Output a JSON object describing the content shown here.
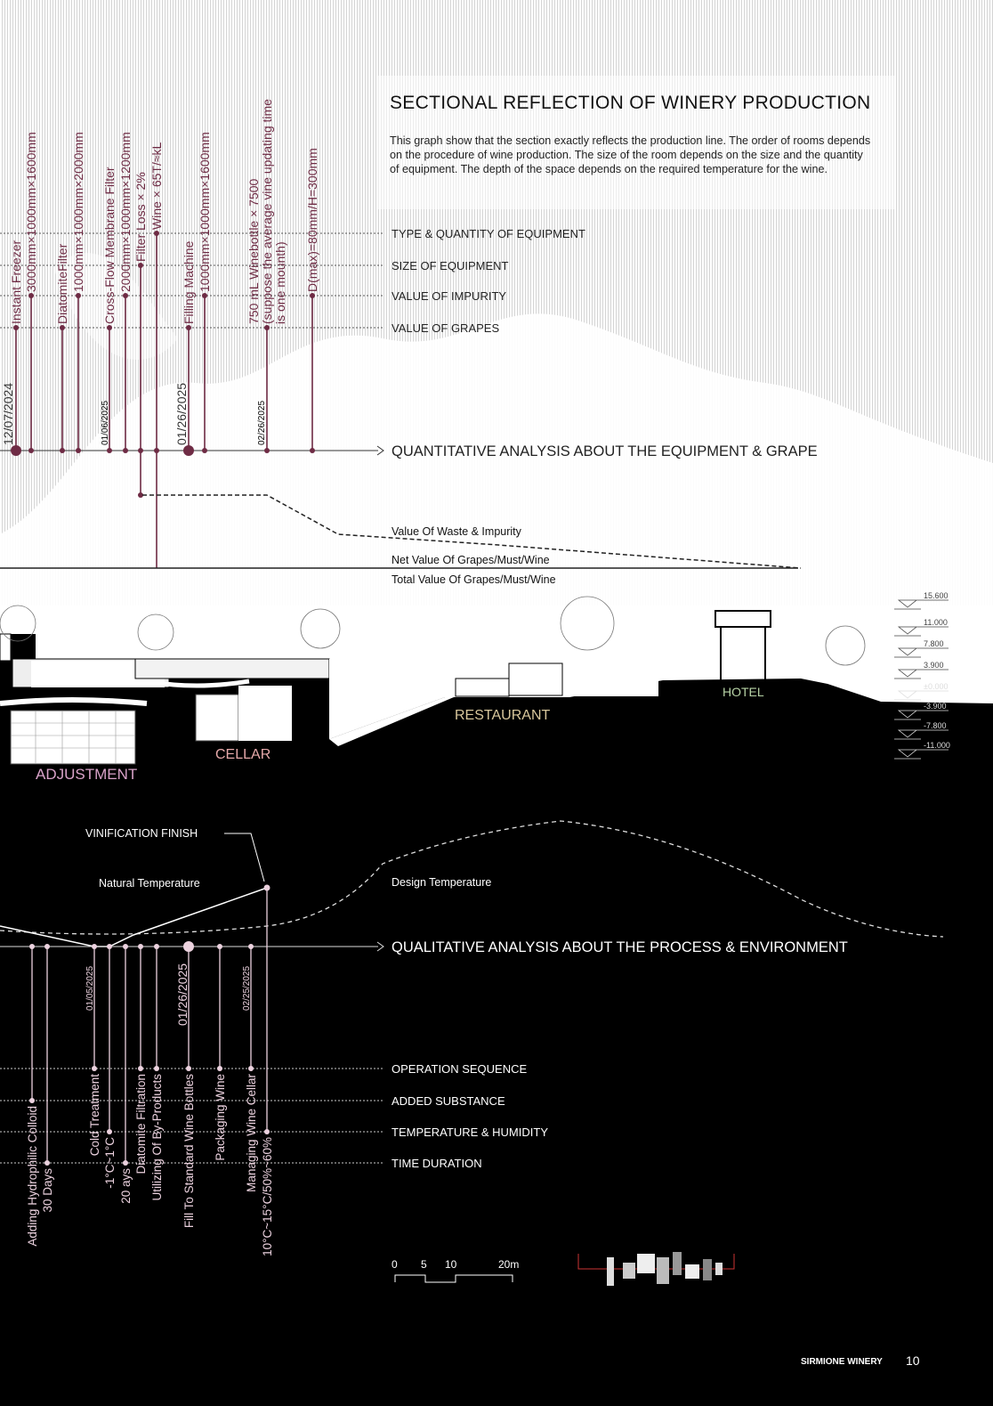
{
  "header": {
    "title": "SECTIONAL REFLECTION OF WINERY PRODUCTION",
    "description": "This graph show that the section exactly reflects the production line. The order of rooms depends on the procedure of wine production. The size of the room depends on the size and the quantity of equipment. The depth of the space depends on the required temperature for the wine."
  },
  "quantitative": {
    "axis_label": "QUANTITATIVE ANALYSIS ABOUT THE EQUIPMENT & GRAPE",
    "levels": [
      "TYPE & QUANTITY OF EQUIPMENT",
      "SIZE OF EQUIPMENT",
      "VALUE OF IMPURITY",
      "VALUE OF GRAPES"
    ],
    "stems": {
      "instant_freezer": "Instant Freezer",
      "freezer_size": "3000mm×1000mm×1600mm",
      "diatomite_filter": "DiatomiteFilter",
      "diatomite_size": "1000mm×1000mm×2000mm",
      "crossflow_filter": "Cross-Flow Membrane Filter",
      "crossflow_size": "2000mm×1000mm×1200mm",
      "filter_loss": "Filter Loss × 2%",
      "wine": "Wine × 65T/≈kL",
      "filling_machine": "Filling Machine",
      "filling_size": "1000mm×1000mm×1600mm",
      "winebottle_1": "750 mL Winebottle × 7500",
      "winebottle_2": "(suppose the average vine updating time",
      "winebottle_3": "is one mounth)",
      "dmax": "D(max)=80mm/H=300mm"
    },
    "dates": [
      "12/07/2024",
      "01/06/2025",
      "01/26/2025",
      "02/26/2025"
    ],
    "value_lines": [
      "Value Of Waste & Impurity",
      "Net Value Of Grapes/Must/Wine",
      "Total Value Of Grapes/Must/Wine"
    ]
  },
  "section": {
    "rooms": [
      "ADJUSTMENT",
      "CELLAR",
      "RESTAURANT",
      "HOTEL"
    ],
    "room_colors": [
      "#d8a2c8",
      "#e6a9aa",
      "#d8c79c",
      "#b7d3a6"
    ],
    "elevations": [
      "15.600",
      "11.000",
      "7.800",
      "3.900",
      "±0.000",
      "-3.900",
      "-7.800",
      "-11.000"
    ]
  },
  "qualitative": {
    "axis_label": "QUALITATIVE ANALYSIS ABOUT THE PROCESS & ENVIRONMENT",
    "levels": [
      "OPERATION SEQUENCE",
      "ADDED SUBSTANCE",
      "TEMPERATURE & HUMIDITY",
      "TIME DURATION"
    ],
    "annotations": {
      "vinification_finish": "VINIFICATION FINISH",
      "natural_temperature": "Natural Temperature",
      "design_temperature": "Design Temperature"
    },
    "stems": {
      "hydrophilic": "Adding Hydrophilic Colloid",
      "days30": "30 Days",
      "cold_treatment": "Cold Treatment",
      "temp_cold": "-1°C~1°C",
      "days20": "20 ays",
      "diatomite_filtration": "Diatomite Filtration",
      "byproducts": "Utilizing Of By-Products",
      "fill_bottles": "Fill To Standard Wine Bottles",
      "packaging": "Packaging Wine",
      "managing_cellar": "Managing Wine Cellar",
      "cellar_climate": "10°C~15°C/50%~60%"
    },
    "dates": [
      "01/05/2025",
      "01/26/2025",
      "02/25/2025"
    ]
  },
  "scale_bar": {
    "ticks": [
      "0",
      "5",
      "10",
      "20m"
    ]
  },
  "footer": {
    "project": "SIRMIONE WINERY",
    "page": "10"
  },
  "colors": {
    "maroon": "#6e2b44",
    "pink": "#ecd2df",
    "black": "#000000"
  }
}
